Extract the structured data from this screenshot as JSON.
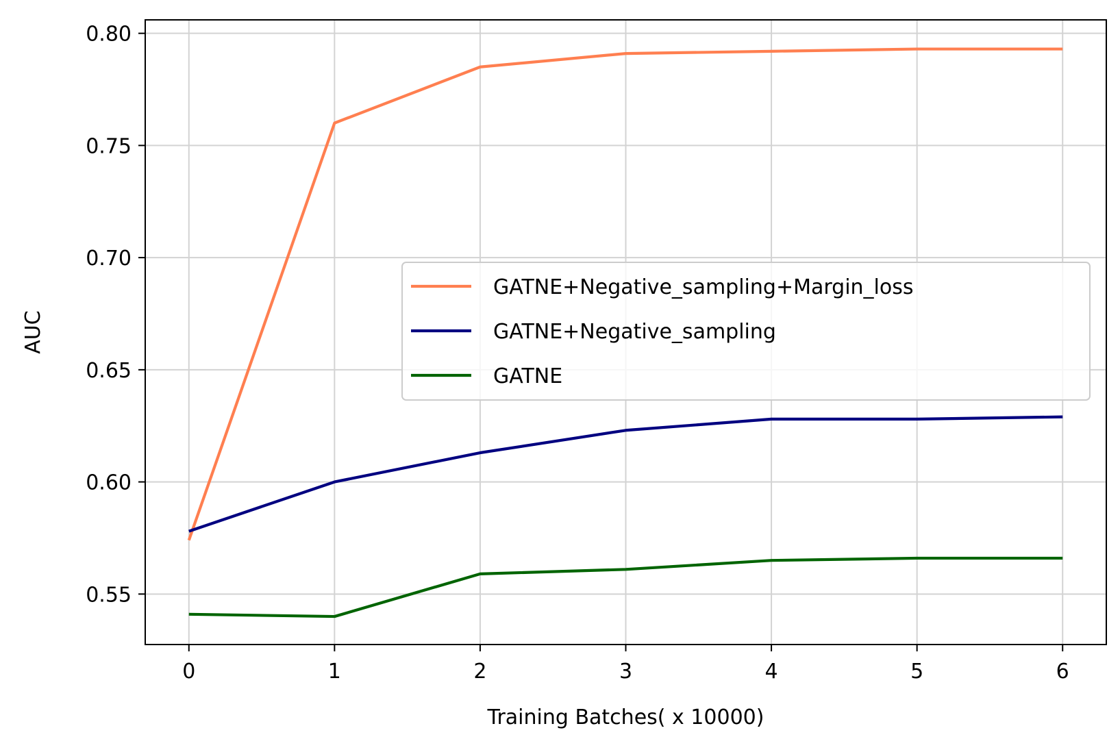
{
  "chart_data": {
    "type": "line",
    "title": "",
    "xlabel": "Training Batches( x 10000)",
    "ylabel": "AUC",
    "x": [
      0,
      1,
      2,
      3,
      4,
      5,
      6
    ],
    "xlim": [
      -0.3,
      6.3
    ],
    "ylim": [
      0.5275,
      0.806
    ],
    "xticks": [
      0,
      1,
      2,
      3,
      4,
      5,
      6
    ],
    "xtick_labels": [
      "0",
      "1",
      "2",
      "3",
      "4",
      "5",
      "6"
    ],
    "yticks": [
      0.55,
      0.6,
      0.65,
      0.7,
      0.75,
      0.8
    ],
    "ytick_labels": [
      "0.55",
      "0.60",
      "0.65",
      "0.70",
      "0.75",
      "0.80"
    ],
    "grid": true,
    "legend_position": "center-right",
    "series": [
      {
        "name": "GATNE+Negative_sampling+Margin_loss",
        "color": "#ff7f50",
        "values": [
          0.574,
          0.76,
          0.785,
          0.791,
          0.792,
          0.793,
          0.793
        ]
      },
      {
        "name": "GATNE+Negative_sampling",
        "color": "#000080",
        "values": [
          0.578,
          0.6,
          0.613,
          0.623,
          0.628,
          0.628,
          0.629
        ]
      },
      {
        "name": "GATNE",
        "color": "#006400",
        "values": [
          0.541,
          0.54,
          0.559,
          0.561,
          0.565,
          0.566,
          0.566
        ]
      }
    ]
  }
}
